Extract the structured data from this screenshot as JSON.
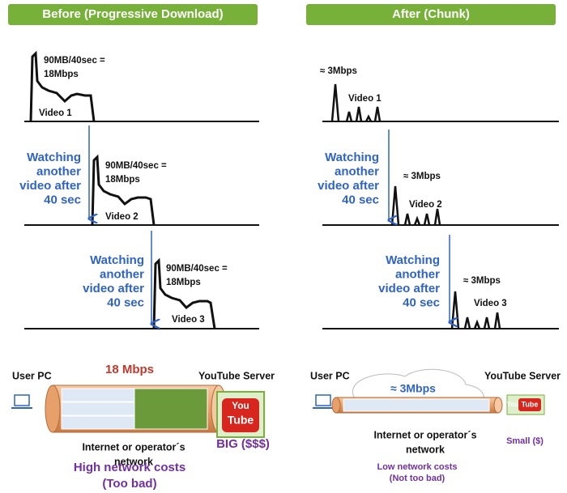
{
  "before": {
    "header": "Before (Progressive Download)",
    "graphs": [
      {
        "rate": [
          "90MB/40sec =",
          "18Mbps"
        ],
        "label": "Video 1"
      },
      {
        "rate": [
          "90MB/40sec =",
          "18Mbps"
        ],
        "label": "Video 2"
      },
      {
        "rate": [
          "90MB/40sec =",
          "18Mbps"
        ],
        "label": "Video 3"
      }
    ],
    "notes": [
      [
        "Watching",
        "another",
        "video after",
        "40 sec"
      ],
      [
        "Watching",
        "another",
        "video after",
        "40 sec"
      ]
    ],
    "network": {
      "user": "User PC",
      "speed": "18 Mbps",
      "server": "YouTube Server",
      "cloud": [
        "Internet or operator´s",
        "network"
      ],
      "server_size": "BIG ($$$)",
      "cost": [
        "High network costs",
        "(Too bad)"
      ],
      "logo": [
        "You",
        "Tube"
      ]
    }
  },
  "after": {
    "header": "After (Chunk)",
    "graphs": [
      {
        "rate": "≈ 3Mbps",
        "label": "Video 1"
      },
      {
        "rate": "≈ 3Mbps",
        "label": "Video 2"
      },
      {
        "rate": "≈ 3Mbps",
        "label": "Video 3"
      }
    ],
    "notes": [
      [
        "Watching",
        "another",
        "video after",
        "40 sec"
      ],
      [
        "Watching",
        "another",
        "video after",
        "40 sec"
      ]
    ],
    "network": {
      "user": "User PC",
      "speed": "≈ 3Mbps",
      "server": "YouTube Server",
      "cloud": [
        "Internet or operator´s",
        "network"
      ],
      "server_size": "Small ($)",
      "cost": [
        "Low network costs",
        "(Not too bad)"
      ],
      "logo": [
        "You",
        "Tube"
      ]
    }
  }
}
